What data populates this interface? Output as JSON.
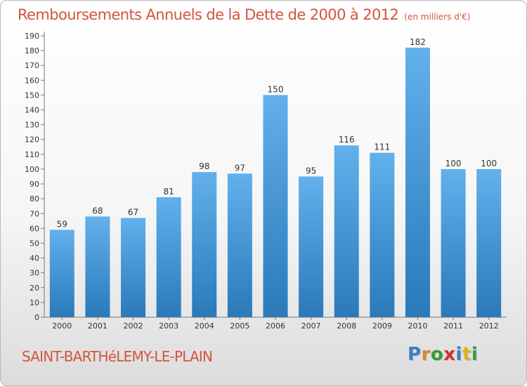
{
  "title": "Remboursements Annuels de la Dette de 2000 à 2012",
  "unit_note": "(en milliers d'€)",
  "commune": "SAINT-BARTHéLEMY-LE-PLAIN",
  "logo": {
    "text": "Proxiti",
    "colors": [
      "#3a7fc4",
      "#e0832a",
      "#3a9a3a",
      "#d6302a",
      "#3a7fc4",
      "#e0b020",
      "#3a9a3a"
    ]
  },
  "colors": {
    "bar_top": "#62b0ec",
    "bar_bottom": "#2a79b9",
    "title": "#d2553d"
  },
  "chart_data": {
    "type": "bar",
    "title": "Remboursements Annuels de la Dette de 2000 à 2012",
    "categories": [
      "2000",
      "2001",
      "2002",
      "2003",
      "2004",
      "2005",
      "2006",
      "2007",
      "2008",
      "2009",
      "2010",
      "2011",
      "2012"
    ],
    "values": [
      59,
      68,
      67,
      81,
      98,
      97,
      150,
      95,
      116,
      111,
      182,
      100,
      100
    ],
    "ylim": [
      0,
      190
    ],
    "yticks": [
      0,
      10,
      20,
      30,
      40,
      50,
      60,
      70,
      80,
      90,
      100,
      110,
      120,
      130,
      140,
      150,
      160,
      170,
      180,
      190
    ],
    "grid": false,
    "data_labels": true
  }
}
